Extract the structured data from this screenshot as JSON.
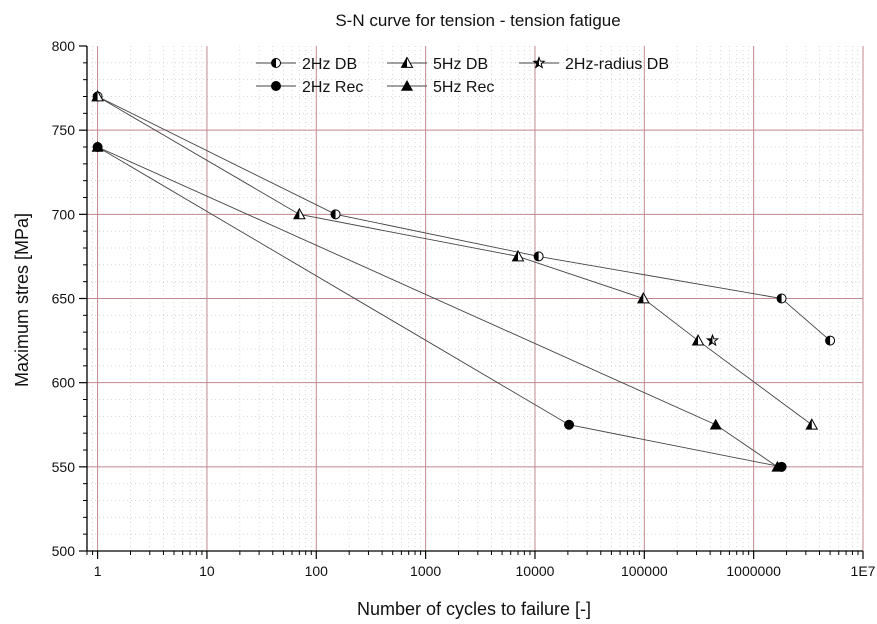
{
  "chart_data": {
    "type": "scatter",
    "title": "S-N curve for tension - tension fatigue",
    "xlabel": "Number of cycles to failure [-]",
    "ylabel": "Maximum stres [MPa]",
    "x_scale": "log",
    "xlim": [
      0.8,
      10000000
    ],
    "ylim": [
      500,
      800
    ],
    "x_ticks": [
      1,
      10,
      100,
      1000,
      10000,
      100000,
      1000000,
      10000000
    ],
    "x_tick_labels": [
      "1",
      "10",
      "100",
      "1000",
      "10000",
      "100000",
      "1000000",
      "1E7"
    ],
    "y_ticks": [
      500,
      550,
      600,
      650,
      700,
      750,
      800
    ],
    "y_tick_labels": [
      "500",
      "550",
      "600",
      "650",
      "700",
      "750",
      "800"
    ],
    "grid": true,
    "grid_color": "#c08890",
    "legend_position": "top-center",
    "series": [
      {
        "name": "2Hz DB",
        "marker": "half-circle",
        "x": [
          1,
          150,
          10800,
          1800000,
          5000000
        ],
        "y": [
          770,
          700,
          675,
          650,
          625
        ]
      },
      {
        "name": "5Hz DB",
        "marker": "half-triangle",
        "x": [
          1,
          70,
          7000,
          98000,
          310000,
          3400000
        ],
        "y": [
          770,
          700,
          675,
          650,
          625,
          575
        ]
      },
      {
        "name": "2Hz-radius DB",
        "marker": "star",
        "x": [
          420000
        ],
        "y": [
          625
        ]
      },
      {
        "name": "2Hz Rec",
        "marker": "filled-circle",
        "x": [
          1,
          20500,
          1800000
        ],
        "y": [
          740,
          575,
          550
        ]
      },
      {
        "name": "5Hz Rec",
        "marker": "filled-triangle",
        "x": [
          1,
          450000,
          1650000
        ],
        "y": [
          740,
          575,
          550
        ]
      }
    ]
  }
}
